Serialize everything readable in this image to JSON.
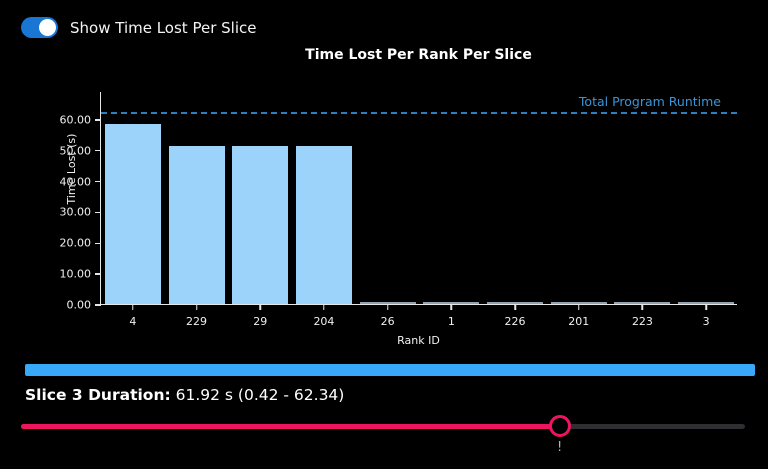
{
  "colors": {
    "background": "#000000",
    "toggle_on": "#1976d2",
    "toggle_knob": "#ffffff",
    "bar_fill": "#9bd3fa",
    "ref_line": "#2f7fbe",
    "ref_label": "#3b94d8",
    "axis": "#e6e6e6",
    "progress": "#38a9f8",
    "slider_fill": "#ed155f",
    "slider_rest": "#2e2e33"
  },
  "toggle": {
    "label": "Show Time Lost Per Slice",
    "state": "on"
  },
  "chart_data": {
    "type": "bar",
    "title": "Time Lost Per Rank Per Slice",
    "xlabel": "Rank ID",
    "ylabel": "Time Lost (s)",
    "categories": [
      "4",
      "229",
      "29",
      "204",
      "26",
      "1",
      "226",
      "201",
      "223",
      "3"
    ],
    "values": [
      58.3,
      51.1,
      51.1,
      51.1,
      0.2,
      0.2,
      0.2,
      0.2,
      0.2,
      0.2
    ],
    "ylim": [
      0,
      69
    ],
    "ytick_values": [
      0,
      10,
      20,
      30,
      40,
      50,
      60
    ],
    "ytick_labels": [
      "0.00",
      "10.00",
      "20.00",
      "30.00",
      "40.00",
      "50.00",
      "60.00"
    ],
    "grid": false,
    "legend_position": "none",
    "reference_line": {
      "label": "Total Program Runtime",
      "value": 62.34,
      "style": "dashed"
    },
    "bar_color": "#9bd3fa"
  },
  "progress": {
    "percent": 100
  },
  "slice_info": {
    "label": "Slice 3 Duration:",
    "value": " 61.92 s (0.42 - 62.34)"
  },
  "slider": {
    "position_pct": 74.4,
    "mark": "!"
  }
}
